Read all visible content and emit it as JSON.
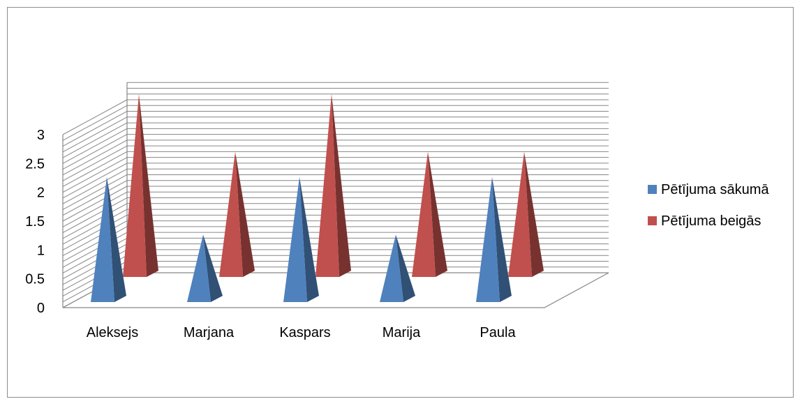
{
  "chart_data": {
    "type": "bar",
    "style": "3d-pyramid",
    "title": "",
    "xlabel": "",
    "ylabel": "",
    "categories": [
      "Aleksejs",
      "Marjana",
      "Kaspars",
      "Marija",
      "Paula"
    ],
    "series": [
      {
        "name": "Pētījuma sākumā",
        "color": "#4f81bd",
        "values": [
          2,
          1,
          2,
          1,
          2
        ]
      },
      {
        "name": "Pētījuma beigās",
        "color": "#c0504d",
        "values": [
          3,
          2,
          3,
          2,
          2
        ]
      }
    ],
    "ylim": [
      0,
      3
    ],
    "yticks": [
      "0",
      "0.5",
      "1",
      "1.5",
      "2",
      "2.5",
      "3"
    ],
    "grid": true,
    "legend_position": "right"
  }
}
